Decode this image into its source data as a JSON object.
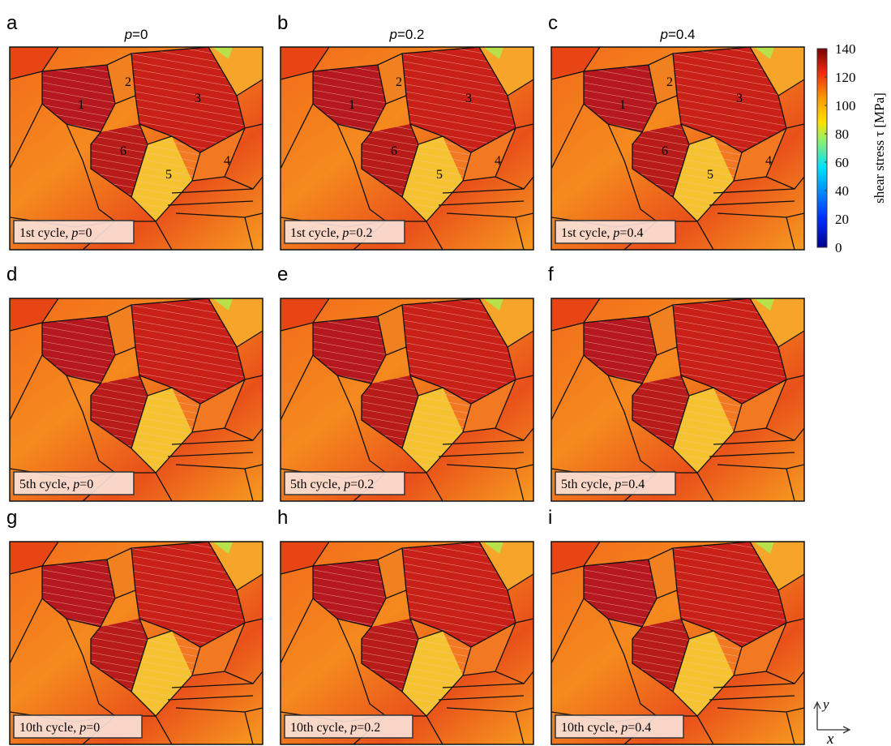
{
  "panels": [
    {
      "letter": "a",
      "caption": {
        "prefix": "1st cycle, ",
        "var": "p",
        "suffix": "=0"
      }
    },
    {
      "letter": "b",
      "caption": {
        "prefix": "1st cycle, ",
        "var": "p",
        "suffix": "=0.2"
      }
    },
    {
      "letter": "c",
      "caption": {
        "prefix": "1st cycle, ",
        "var": "p",
        "suffix": "=0.4"
      }
    },
    {
      "letter": "d",
      "caption": {
        "prefix": "5th cycle, ",
        "var": "p",
        "suffix": "=0"
      }
    },
    {
      "letter": "e",
      "caption": {
        "prefix": "5th cycle, ",
        "var": "p",
        "suffix": "=0.2"
      }
    },
    {
      "letter": "f",
      "caption": {
        "prefix": "5th cycle, ",
        "var": "p",
        "suffix": "=0.4"
      }
    },
    {
      "letter": "g",
      "caption": {
        "prefix": "10th cycle, ",
        "var": "p",
        "suffix": "=0"
      }
    },
    {
      "letter": "h",
      "caption": {
        "prefix": "10th cycle, ",
        "var": "p",
        "suffix": "=0.2"
      }
    },
    {
      "letter": "i",
      "caption": {
        "prefix": "10th cycle, ",
        "var": "p",
        "suffix": "=0.4"
      }
    }
  ],
  "column_headers": [
    {
      "var": "p",
      "suffix": "=0"
    },
    {
      "var": "p",
      "suffix": "=0.2"
    },
    {
      "var": "p",
      "suffix": "=0.4"
    }
  ],
  "grain_labels": [
    "1",
    "2",
    "3",
    "4",
    "5",
    "6"
  ],
  "colorbar": {
    "label": "shear stress τ [MPa]",
    "min": 0,
    "max": 140,
    "ticks": [
      0,
      20,
      40,
      60,
      80,
      100,
      120,
      140
    ]
  },
  "axes": {
    "x": "x",
    "y": "y"
  }
}
